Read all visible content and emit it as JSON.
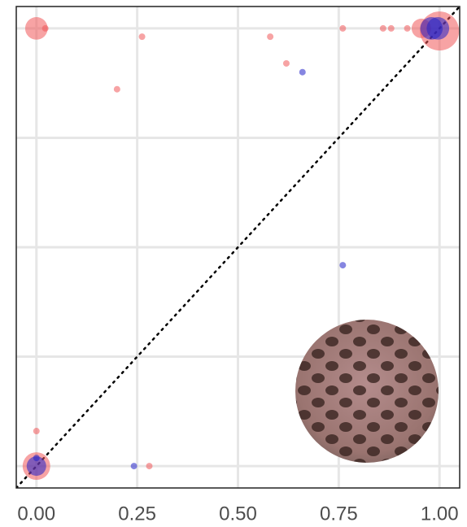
{
  "chart_data": {
    "type": "scatter",
    "xlim": [
      -0.05,
      1.05
    ],
    "ylim": [
      -0.05,
      1.05
    ],
    "xticks": [
      {
        "value": 0,
        "label": "0.00"
      },
      {
        "value": 0.25,
        "label": "0.25"
      },
      {
        "value": 0.5,
        "label": "0.50"
      },
      {
        "value": 0.75,
        "label": "0.75"
      },
      {
        "value": 1,
        "label": "1.00"
      }
    ],
    "yticks": [
      0,
      0.25,
      0.5,
      0.75,
      1
    ],
    "grid": true,
    "series": [
      {
        "color": "#f0585a",
        "x": [
          0,
          0.022,
          0.262,
          0.2,
          0.58,
          0.62,
          0.76,
          0.86,
          0.88,
          0.92,
          0.955,
          1,
          0,
          0,
          0.28
        ],
        "values": [
          1,
          1,
          0.981,
          0.861,
          0.981,
          0.92,
          1,
          1,
          1,
          1,
          1,
          0.994,
          0.08,
          0,
          0
        ],
        "sizes": [
          12,
          1,
          1,
          1,
          1,
          1,
          1,
          1,
          1,
          1,
          9,
          36,
          1,
          18,
          1
        ]
      },
      {
        "color": "#2323c8",
        "x": [
          0.66,
          0.76,
          0.98,
          0.996,
          0,
          0,
          0.242
        ],
        "values": [
          0.9,
          0.459,
          1,
          1,
          0.0185,
          0,
          0
        ],
        "sizes": [
          1,
          1,
          12,
          12,
          1,
          9,
          1
        ]
      }
    ]
  }
}
